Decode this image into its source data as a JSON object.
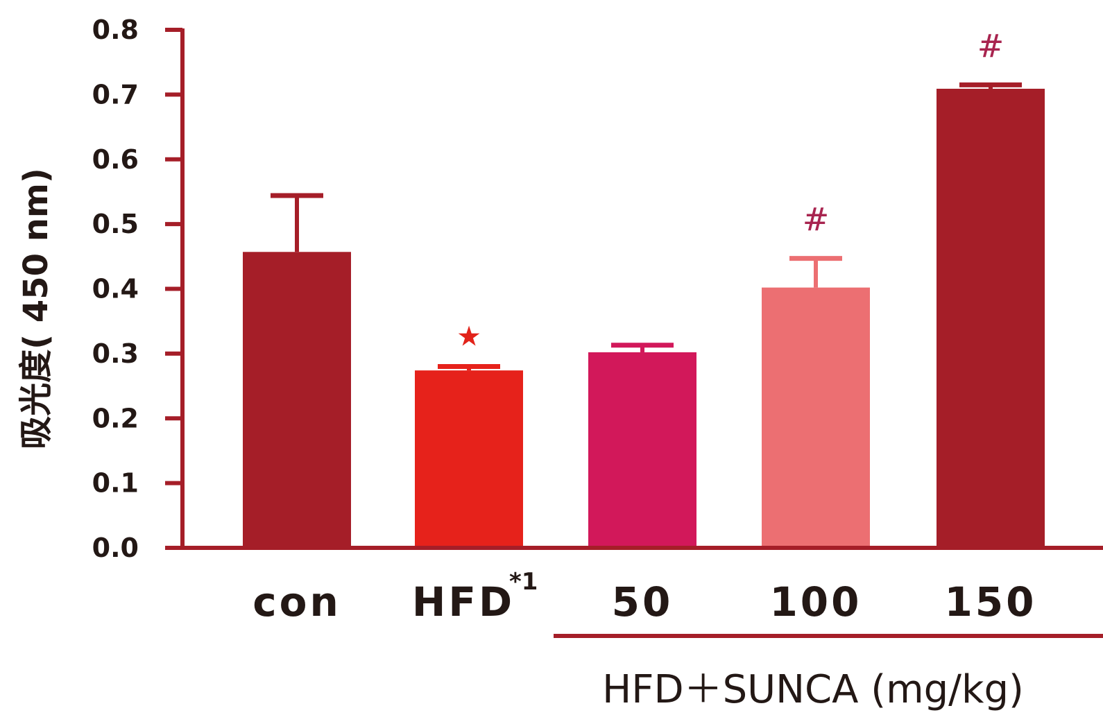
{
  "chart_data": {
    "type": "bar",
    "ylabel": "吸光度( 450 nm)",
    "ylim": [
      0,
      0.8
    ],
    "yticks": [
      "0.0",
      "0.1",
      "0.2",
      "0.3",
      "0.4",
      "0.5",
      "0.6",
      "0.7",
      "0.8"
    ],
    "categories": [
      "con",
      "HFD",
      "50",
      "100",
      "150"
    ],
    "category_superscripts": [
      "",
      "*1",
      "",
      "",
      ""
    ],
    "values": [
      0.457,
      0.274,
      0.302,
      0.402,
      0.709
    ],
    "error_bars": [
      0.087,
      0.006,
      0.011,
      0.045,
      0.006
    ],
    "colors": [
      "#a51e28",
      "#e6221b",
      "#d2185a",
      "#ec6f72",
      "#a51e28"
    ],
    "significance_marks": [
      "",
      "★",
      "",
      "#",
      "#"
    ],
    "group_label": "HFD＋SUNCA (mg/kg)",
    "axis_color": "#a51e28",
    "grid": false
  }
}
